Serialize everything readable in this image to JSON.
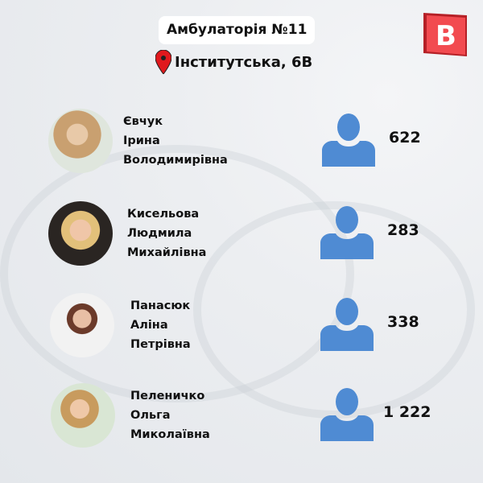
{
  "header": {
    "title": "Амбулаторія №11",
    "address": "Інститутська, 6В",
    "logo_letter": "B"
  },
  "colors": {
    "icon": "#4f8bd3",
    "logo": "#e8363b",
    "pin": "#e0191d"
  },
  "doctors": [
    {
      "last": "Євчук",
      "first": "Ірина",
      "middle": "Володимирівна",
      "count": "622"
    },
    {
      "last": "Кисельова",
      "first": "Людмила",
      "middle": "Михайлівна",
      "count": "283"
    },
    {
      "last": "Панасюк",
      "first": "Аліна",
      "middle": "Петрівна",
      "count": "338"
    },
    {
      "last": "Пеленичко",
      "first": "Ольга",
      "middle": "Миколаївна",
      "count": "1 222"
    }
  ]
}
